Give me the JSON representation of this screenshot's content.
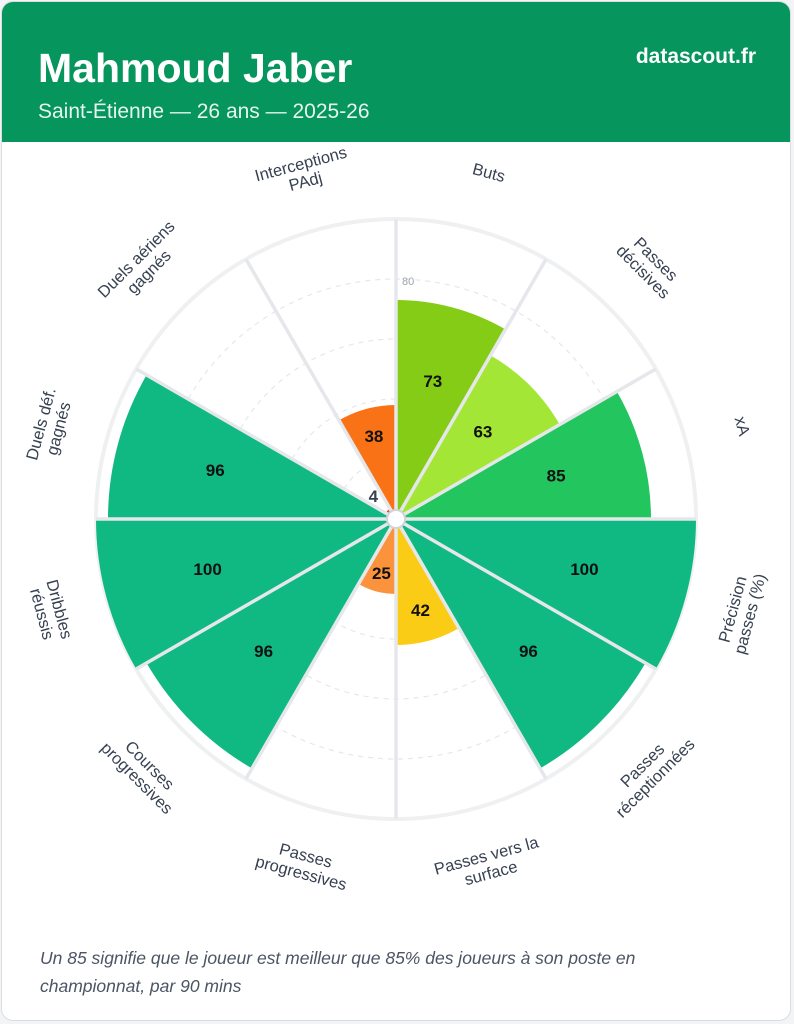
{
  "header": {
    "player_name": "Mahmoud Jaber",
    "subtitle": "Saint-Étienne — 26 ans — 2025-26",
    "brand": "datascout.fr"
  },
  "footnote": "Un 85 signifie que le joueur est meilleur que 85% des joueurs à son poste en championnat, par 90 mins",
  "chart_data": {
    "type": "pizza",
    "value_range": [
      0,
      100
    ],
    "gridline_label": "80",
    "metrics": [
      {
        "label": [
          "Buts"
        ],
        "value": 73,
        "color": "#84cc16"
      },
      {
        "label": [
          "Passes",
          "décisives"
        ],
        "value": 63,
        "color": "#a3e635"
      },
      {
        "label": [
          "xA"
        ],
        "value": 85,
        "color": "#22c55e"
      },
      {
        "label": [
          "Précision",
          "passes (%)"
        ],
        "value": 100,
        "color": "#10b981"
      },
      {
        "label": [
          "Passes",
          "réceptionnées"
        ],
        "value": 96,
        "color": "#10b981"
      },
      {
        "label": [
          "Passes vers la",
          "surface"
        ],
        "value": 42,
        "color": "#facc15"
      },
      {
        "label": [
          "Passes",
          "progressives"
        ],
        "value": 25,
        "color": "#fb923c"
      },
      {
        "label": [
          "Courses",
          "progressives"
        ],
        "value": 96,
        "color": "#10b981"
      },
      {
        "label": [
          "Dribbles",
          "réussis"
        ],
        "value": 100,
        "color": "#10b981"
      },
      {
        "label": [
          "Duels déf.",
          "gagnés"
        ],
        "value": 96,
        "color": "#10b981"
      },
      {
        "label": [
          "Duels aériens",
          "gagnés"
        ],
        "value": 4,
        "color": "#ef4444"
      },
      {
        "label": [
          "Interceptions",
          "PAdj"
        ],
        "value": 38,
        "color": "#f97316"
      }
    ]
  }
}
